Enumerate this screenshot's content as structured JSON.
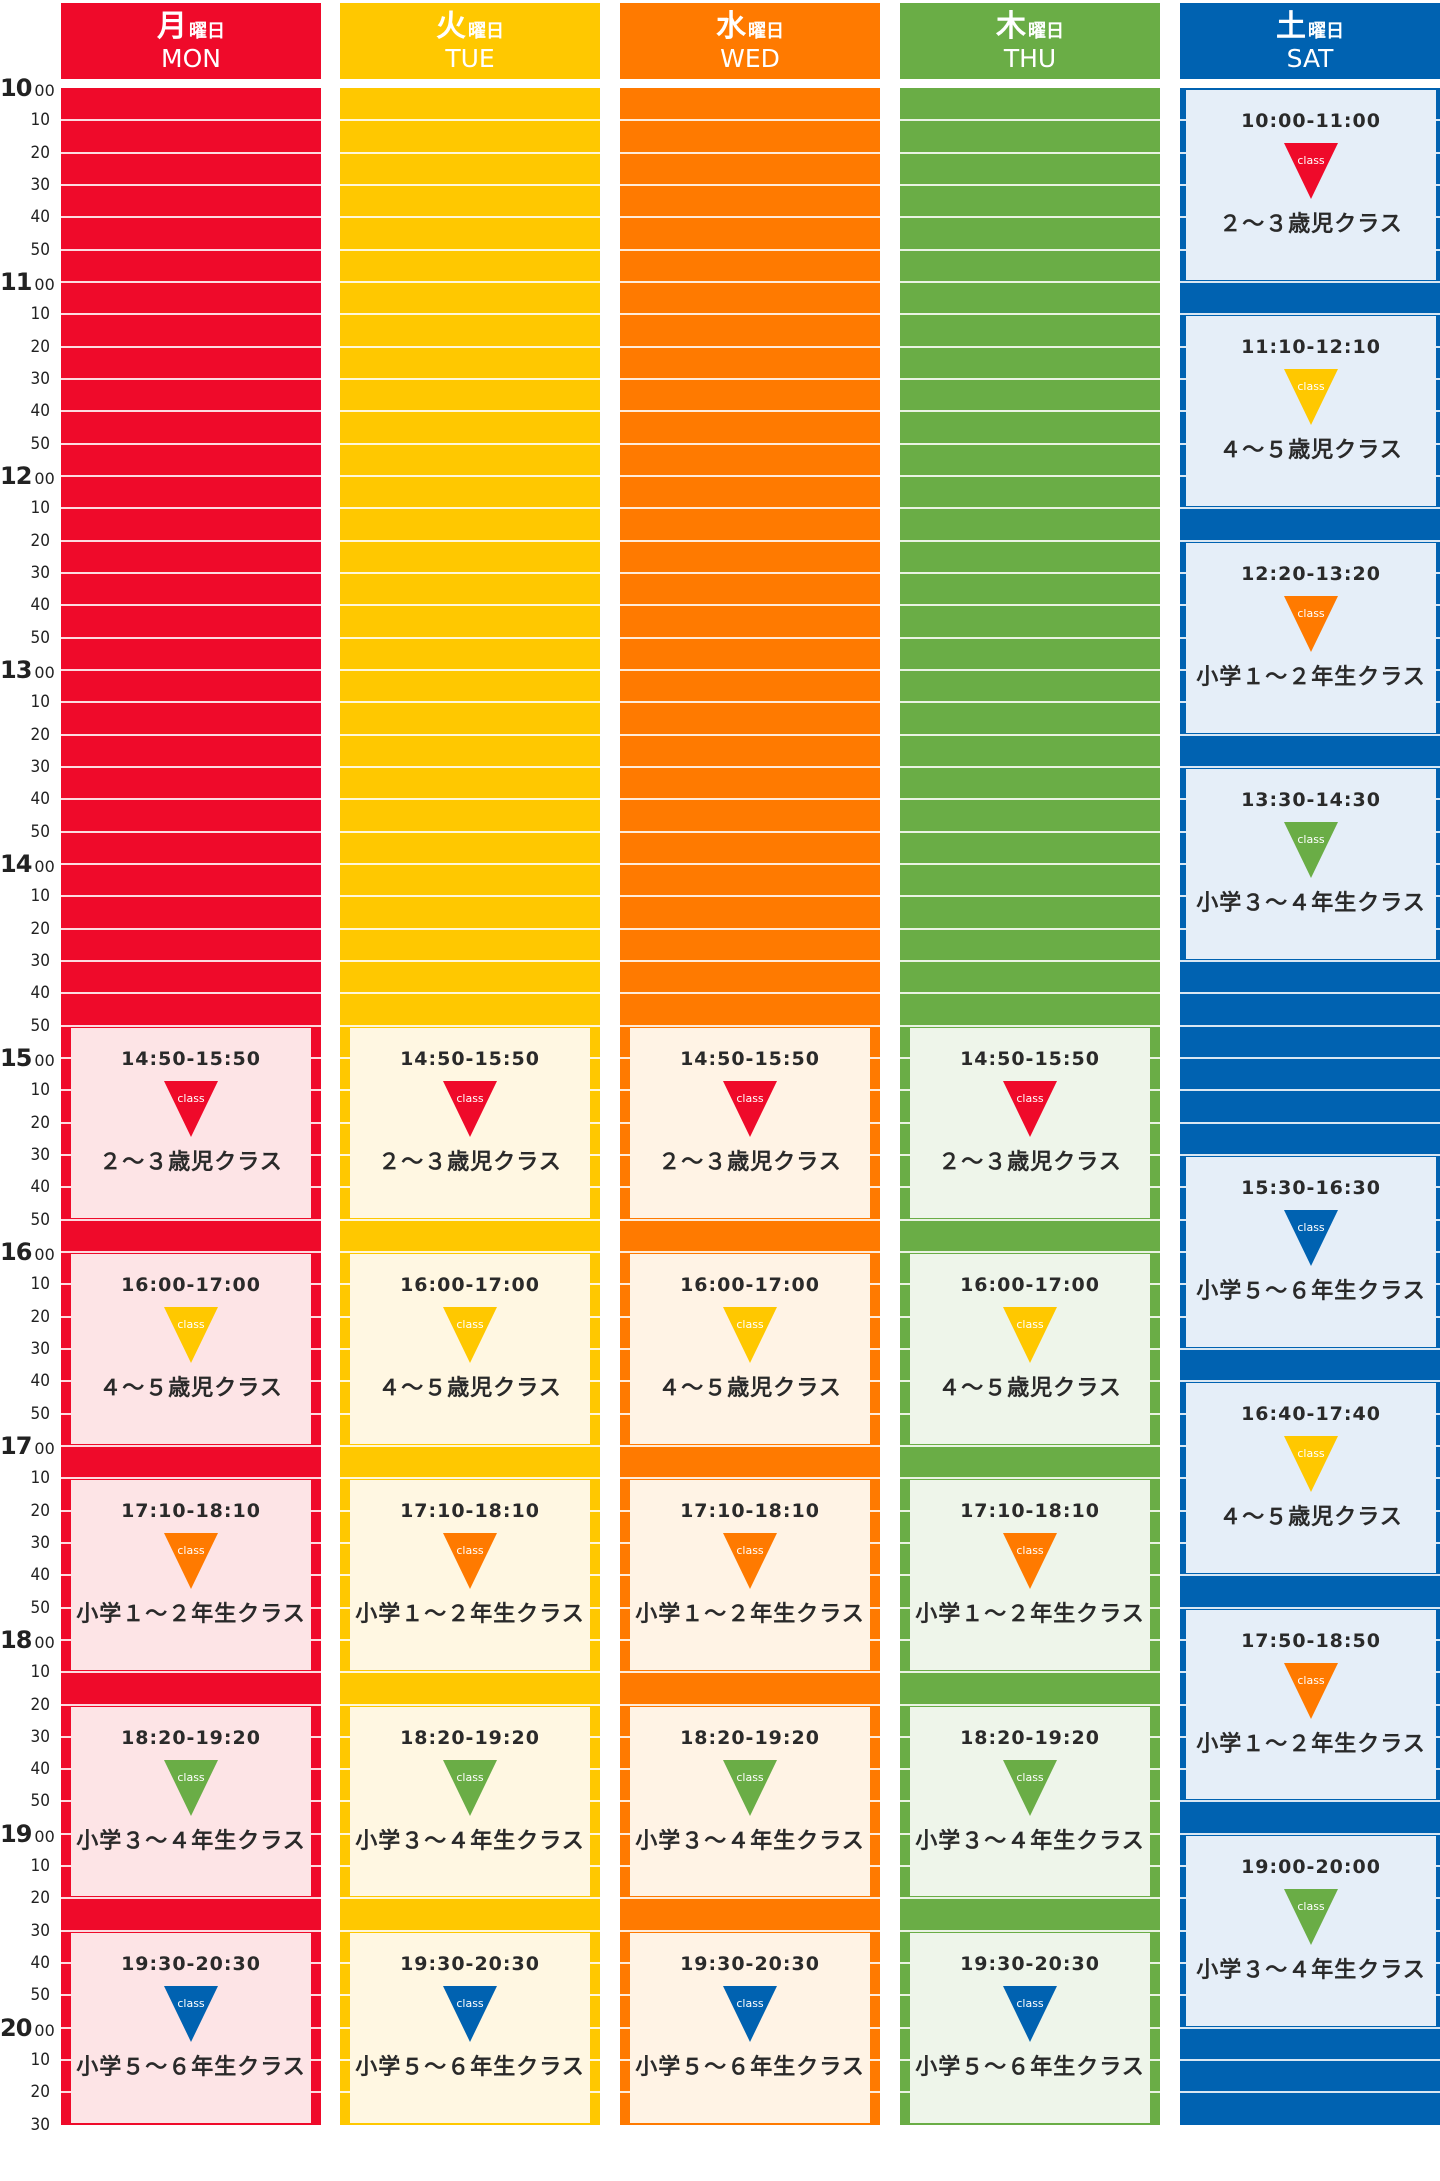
{
  "days": [
    {
      "kanji": "月",
      "suffix": "曜日",
      "en": "MON",
      "color": "#ef0a2a",
      "card_bg": "#fde4e6",
      "accent": "#ef0a2a"
    },
    {
      "kanji": "火",
      "suffix": "曜日",
      "en": "TUE",
      "color": "#ffc800",
      "card_bg": "#fff7e2",
      "accent": "#ffc800"
    },
    {
      "kanji": "水",
      "suffix": "曜日",
      "en": "WED",
      "color": "#ff7a00",
      "card_bg": "#fff3e5",
      "accent": "#ff7a00"
    },
    {
      "kanji": "木",
      "suffix": "曜日",
      "en": "THU",
      "color": "#6aad46",
      "card_bg": "#eef5ea",
      "accent": "#6aad46"
    },
    {
      "kanji": "土",
      "suffix": "曜日",
      "en": "SAT",
      "color": "#0062b1",
      "card_bg": "#e5eef8",
      "accent": "#0062b1"
    }
  ],
  "time_axis": {
    "hours": [
      "10",
      "11",
      "12",
      "13",
      "14",
      "15",
      "16",
      "17",
      "18",
      "19",
      "20"
    ],
    "hour_suffix": "00",
    "minutes": [
      "10",
      "20",
      "30",
      "40",
      "50"
    ],
    "last_label": "30"
  },
  "class_types": {
    "age23": {
      "name": "２～３歳児クラス",
      "color": "#ef0a2a"
    },
    "age45": {
      "name": "４～５歳児クラス",
      "color": "#ffc800"
    },
    "grade12": {
      "name": "小学１～２年生クラス",
      "color": "#ff7a00"
    },
    "grade34": {
      "name": "小学３～４年生クラス",
      "color": "#6aad46"
    },
    "grade56": {
      "name": "小学５～６年生クラス",
      "color": "#0062b1"
    }
  },
  "class_badge_label": "class",
  "weekday_classes": [
    {
      "time": "14:50-15:50",
      "type": "age23",
      "start": "14:50",
      "end": "15:50"
    },
    {
      "time": "16:00-17:00",
      "type": "age45",
      "start": "16:00",
      "end": "17:00"
    },
    {
      "time": "17:10-18:10",
      "type": "grade12",
      "start": "17:10",
      "end": "18:10"
    },
    {
      "time": "18:20-19:20",
      "type": "grade34",
      "start": "18:20",
      "end": "19:20"
    },
    {
      "time": "19:30-20:30",
      "type": "grade56",
      "start": "19:30",
      "end": "20:30"
    }
  ],
  "saturday_classes": [
    {
      "time": "10:00-11:00",
      "type": "age23",
      "start": "10:00",
      "end": "11:00"
    },
    {
      "time": "11:10-12:10",
      "type": "age45",
      "start": "11:10",
      "end": "12:10"
    },
    {
      "time": "12:20-13:20",
      "type": "grade12",
      "start": "12:20",
      "end": "13:20"
    },
    {
      "time": "13:30-14:30",
      "type": "grade34",
      "start": "13:30",
      "end": "14:30"
    },
    {
      "time": "15:30-16:30",
      "type": "grade56",
      "start": "15:30",
      "end": "16:30"
    },
    {
      "time": "16:40-17:40",
      "type": "age45",
      "start": "16:40",
      "end": "17:40"
    },
    {
      "time": "17:50-18:50",
      "type": "grade12",
      "start": "17:50",
      "end": "18:50"
    },
    {
      "time": "19:00-20:00",
      "type": "grade34",
      "start": "19:00",
      "end": "20:00"
    }
  ]
}
